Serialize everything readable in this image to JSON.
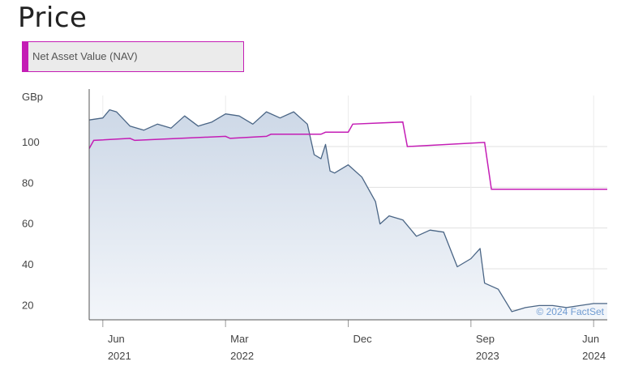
{
  "page": {
    "title": "Price"
  },
  "legend": {
    "label": "Net Asset Value (NAV)",
    "color": "#c41db5"
  },
  "credit": "© 2024 FactSet",
  "chart_data": {
    "type": "line",
    "title": "Price",
    "ylabel": "GBp",
    "ylim": [
      15,
      125
    ],
    "yticks": [
      20,
      40,
      60,
      80,
      100
    ],
    "grid": true,
    "x_ticks": [
      {
        "month": "Jun",
        "year": "2021"
      },
      {
        "month": "Mar",
        "year": "2022"
      },
      {
        "month": "Dec",
        "year": ""
      },
      {
        "month": "Sep",
        "year": "2023"
      },
      {
        "month": "Jun",
        "year": "2024"
      }
    ],
    "x_range": [
      "2021-05",
      "2024-07"
    ],
    "series": [
      {
        "kind": "price",
        "color": "#4a6585",
        "fill": "#dbe3ee",
        "points": [
          [
            "2021-05",
            113
          ],
          [
            "2021-06",
            114
          ],
          [
            "2021-06-15",
            118
          ],
          [
            "2021-07",
            117
          ],
          [
            "2021-08",
            110
          ],
          [
            "2021-09",
            108
          ],
          [
            "2021-10",
            111
          ],
          [
            "2021-11",
            109
          ],
          [
            "2021-12",
            115
          ],
          [
            "2022-01",
            110
          ],
          [
            "2022-02",
            112
          ],
          [
            "2022-03",
            116
          ],
          [
            "2022-04",
            115
          ],
          [
            "2022-05",
            111
          ],
          [
            "2022-06",
            117
          ],
          [
            "2022-07",
            114
          ],
          [
            "2022-08",
            117
          ],
          [
            "2022-09",
            111
          ],
          [
            "2022-09-15",
            96
          ],
          [
            "2022-10",
            94
          ],
          [
            "2022-10-10",
            101
          ],
          [
            "2022-10-20",
            88
          ],
          [
            "2022-11",
            87
          ],
          [
            "2022-12",
            91
          ],
          [
            "2023-01",
            85
          ],
          [
            "2023-02",
            73
          ],
          [
            "2023-02-10",
            62
          ],
          [
            "2023-03",
            66
          ],
          [
            "2023-04",
            64
          ],
          [
            "2023-05",
            56
          ],
          [
            "2023-06",
            59
          ],
          [
            "2023-07",
            58
          ],
          [
            "2023-08",
            41
          ],
          [
            "2023-09",
            45
          ],
          [
            "2023-09-20",
            50
          ],
          [
            "2023-10",
            33
          ],
          [
            "2023-11",
            30
          ],
          [
            "2023-12",
            19
          ],
          [
            "2024-01",
            21
          ],
          [
            "2024-02",
            22
          ],
          [
            "2024-03",
            22
          ],
          [
            "2024-04",
            21
          ],
          [
            "2024-05",
            22
          ],
          [
            "2024-06",
            23
          ],
          [
            "2024-07",
            23
          ]
        ]
      },
      {
        "name": "Net Asset Value (NAV)",
        "kind": "nav",
        "color": "#c41db5",
        "points": [
          [
            "2021-05",
            99
          ],
          [
            "2021-05-10",
            103
          ],
          [
            "2021-08",
            104
          ],
          [
            "2021-08-10",
            103
          ],
          [
            "2022-03",
            105
          ],
          [
            "2022-03-10",
            104
          ],
          [
            "2022-06",
            105
          ],
          [
            "2022-06-10",
            106
          ],
          [
            "2022-10",
            106
          ],
          [
            "2022-10-10",
            107
          ],
          [
            "2022-12",
            107
          ],
          [
            "2022-12-10",
            111
          ],
          [
            "2023-04",
            112
          ],
          [
            "2023-04-10",
            100
          ],
          [
            "2023-10",
            102
          ],
          [
            "2023-10-15",
            79
          ],
          [
            "2024-07",
            79
          ]
        ]
      }
    ]
  }
}
